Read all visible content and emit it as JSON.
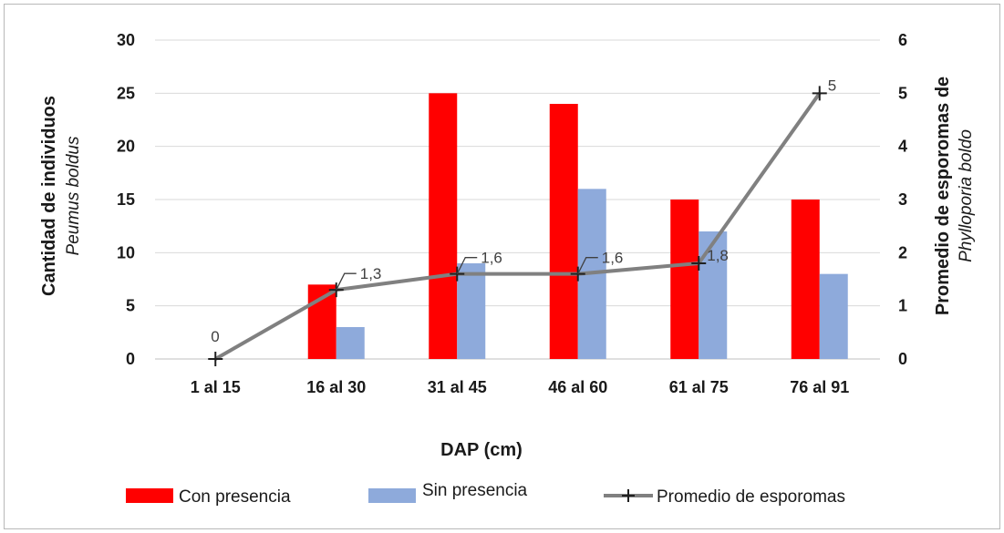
{
  "chart_data": {
    "type": "bar",
    "categories": [
      "1 al 15",
      "16 al 30",
      "31 al 45",
      "46 al 60",
      "61 al 75",
      "76 al 91"
    ],
    "series": [
      {
        "name": "Con presencia",
        "type": "bar",
        "axis": "left",
        "color": "#ff0000",
        "values": [
          0,
          7,
          25,
          24,
          15,
          15
        ]
      },
      {
        "name": "Sin presencia",
        "type": "bar",
        "axis": "left",
        "color": "#8eaadb",
        "values": [
          0,
          3,
          9,
          16,
          12,
          8
        ]
      },
      {
        "name": "Promedio de esporomas",
        "type": "line",
        "axis": "right",
        "color": "#808080",
        "marker": "plus",
        "values": [
          0,
          1.3,
          1.6,
          1.6,
          1.8,
          5
        ],
        "data_labels": [
          "0",
          "1,3",
          "1,6",
          "1,6",
          "1,8",
          "5"
        ]
      }
    ],
    "xlabel": "DAP (cm)",
    "ylabel_left": "Cantidad de individuos",
    "ylabel_left_sub": "Peumus boldus",
    "ylabel_right": "Promedio de esporomas de",
    "ylabel_right_sub": "Phylloporia boldo",
    "ylim_left": [
      0,
      30
    ],
    "yticks_left": [
      0,
      5,
      10,
      15,
      20,
      25,
      30
    ],
    "ylim_right": [
      0,
      6
    ],
    "yticks_right": [
      0,
      1,
      2,
      3,
      4,
      5,
      6
    ],
    "grid": true,
    "legend_position": "bottom"
  }
}
